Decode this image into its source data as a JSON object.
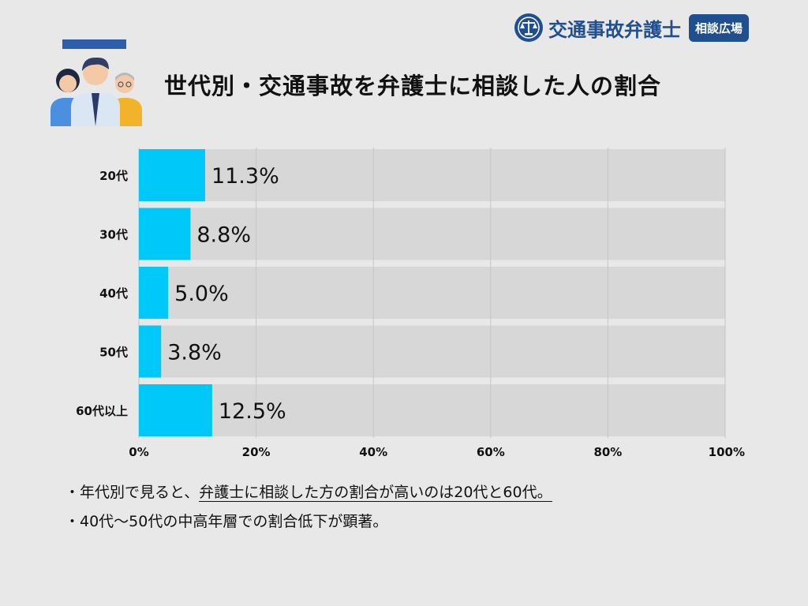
{
  "title": "世代別・交通事故を弁護士に相談した人の割合",
  "brand": {
    "name": "交通事故弁護士",
    "badge": "相談広場",
    "logo_icon": "scales-of-justice-icon"
  },
  "illustration_icon": "three-people-icon",
  "colors": {
    "bar": "#00c8f8",
    "track": "#d7d7d7",
    "accent": "#2f5ea8",
    "brand": "#1f4f8f"
  },
  "chart_data": {
    "type": "bar",
    "orientation": "horizontal",
    "categories": [
      "20代",
      "30代",
      "40代",
      "50代",
      "60代以上"
    ],
    "values": [
      11.3,
      8.8,
      5.0,
      3.8,
      12.5
    ],
    "value_labels": [
      "11.3%",
      "8.8%",
      "5.0%",
      "3.8%",
      "12.5%"
    ],
    "xlim": [
      0,
      100
    ],
    "xticks": [
      0,
      20,
      40,
      60,
      80,
      100
    ],
    "xtick_labels": [
      "0%",
      "20%",
      "40%",
      "60%",
      "80%",
      "100%"
    ],
    "grid": true,
    "legend": "none"
  },
  "notes": [
    {
      "prefix": "・年代別で見ると、",
      "underlined": "弁護士に相談した方の割合が高いのは20代と60代。"
    },
    {
      "prefix": "・40代〜50代の中高年層での割合低下が顕著。",
      "underlined": ""
    }
  ]
}
